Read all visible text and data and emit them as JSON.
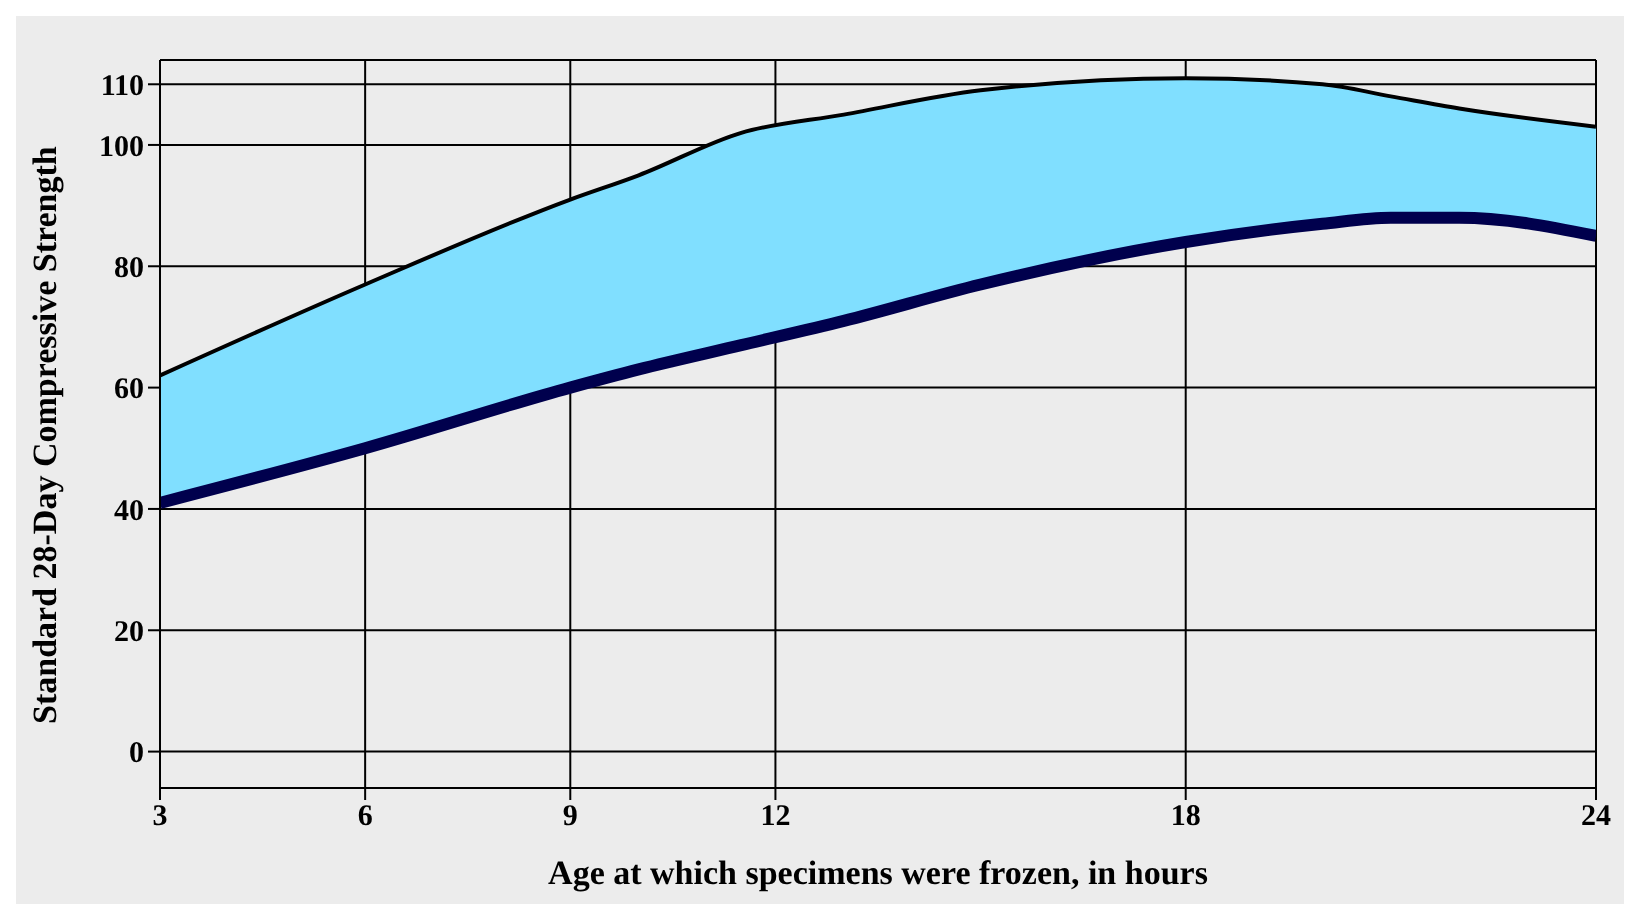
{
  "chart_data": {
    "type": "area",
    "xlabel": "Age at which specimens were frozen, in hours",
    "ylabel": "Standard 28-Day Compressive Strength",
    "x": [
      3,
      6,
      9,
      10,
      11.5,
      13,
      15,
      18,
      20,
      21,
      22,
      24
    ],
    "series": [
      {
        "type": "line",
        "color": "#00004d",
        "values": [
          41,
          50,
          60,
          63,
          67,
          71,
          77,
          84,
          87,
          88,
          88,
          85
        ]
      },
      {
        "color": "#80dfff",
        "values": [
          62,
          77,
          91,
          95,
          102,
          105,
          109,
          111,
          110,
          108,
          106,
          103
        ]
      }
    ],
    "xlim": [
      3,
      24
    ],
    "xticks": [
      3,
      6,
      9,
      12,
      18,
      24
    ],
    "ylim": [
      -6,
      114
    ],
    "yticks": [
      0,
      20,
      40,
      60,
      80,
      100,
      110
    ],
    "grid": true
  }
}
